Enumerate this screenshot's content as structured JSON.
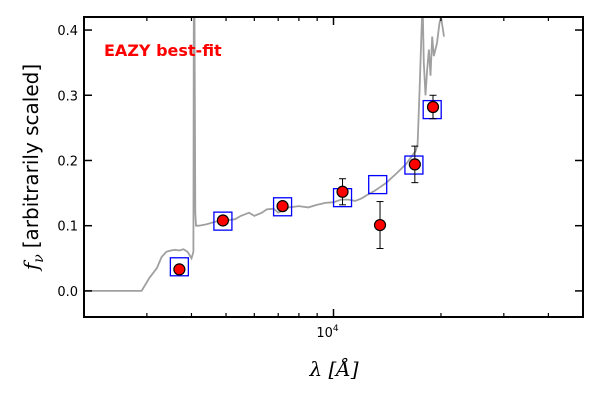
{
  "chart_data": {
    "type": "scatter",
    "title": "",
    "annotation": {
      "text": "EAZY best-fit",
      "color": "#ff0000"
    },
    "xlabel": "λ [Å]",
    "ylabel": "f_ν [arbitrarily scaled]",
    "xscale": "log",
    "xlim": [
      2000,
      50000
    ],
    "ylim": [
      -0.04,
      0.42
    ],
    "grid": false,
    "xticks_major": [
      {
        "value": 10000,
        "base": "10",
        "exp": "4"
      }
    ],
    "xticks_minor": [
      3000,
      4000,
      5000,
      6000,
      7000,
      8000,
      9000,
      20000,
      30000,
      40000
    ],
    "yticks": [
      {
        "value": 0.0,
        "label": "0.0"
      },
      {
        "value": 0.1,
        "label": "0.1"
      },
      {
        "value": 0.2,
        "label": "0.2"
      },
      {
        "value": 0.3,
        "label": "0.3"
      },
      {
        "value": 0.4,
        "label": "0.4"
      }
    ],
    "colors": {
      "template": "#a0a0a0",
      "model_box": "#0000ff",
      "observed_fill": "#ff0000",
      "observed_edge": "#000000"
    },
    "series": [
      {
        "kind": "line",
        "x": [
          2000,
          2900,
          3050,
          3200,
          3300,
          3400,
          3500,
          3600,
          3700,
          3800,
          3900,
          3950,
          4000,
          4050,
          4060,
          4080,
          4100,
          4120,
          4200,
          4400,
          4600,
          4800,
          5000,
          5300,
          5500,
          5800,
          6000,
          6300,
          6500,
          6800,
          7000,
          7500,
          8000,
          8500,
          9000,
          9500,
          10000,
          10500,
          11000,
          11500,
          12000,
          12500,
          13000,
          14000,
          15000,
          16000,
          16500,
          17000,
          17200,
          17400,
          17700,
          17800,
          17900,
          18100,
          18300,
          18500,
          18700,
          18900,
          19100,
          19500,
          19800,
          20000,
          20400
        ],
        "y": [
          0.0,
          0.0,
          0.02,
          0.035,
          0.052,
          0.06,
          0.062,
          0.063,
          0.062,
          0.064,
          0.06,
          0.055,
          0.05,
          0.06,
          0.42,
          0.42,
          0.12,
          0.1,
          0.1,
          0.102,
          0.105,
          0.108,
          0.108,
          0.11,
          0.115,
          0.12,
          0.115,
          0.12,
          0.125,
          0.126,
          0.12,
          0.128,
          0.13,
          0.128,
          0.132,
          0.135,
          0.136,
          0.14,
          0.14,
          0.138,
          0.142,
          0.148,
          0.153,
          0.165,
          0.18,
          0.195,
          0.205,
          0.215,
          0.225,
          0.3,
          0.42,
          0.42,
          0.35,
          0.3,
          0.34,
          0.37,
          0.33,
          0.39,
          0.36,
          0.38,
          0.41,
          0.42,
          0.39
        ]
      },
      {
        "kind": "boxes",
        "x": [
          3700,
          4900,
          7200,
          10600,
          13300,
          16800,
          18900
        ],
        "y": [
          0.037,
          0.107,
          0.129,
          0.143,
          0.163,
          0.193,
          0.278
        ]
      },
      {
        "kind": "points_with_errors",
        "x": [
          3700,
          4900,
          7200,
          10600,
          13500,
          16900,
          19000
        ],
        "y": [
          0.033,
          0.108,
          0.13,
          0.152,
          0.101,
          0.194,
          0.282
        ],
        "yerr": [
          0.004,
          0.006,
          0.006,
          0.02,
          0.036,
          0.028,
          0.018
        ]
      }
    ]
  }
}
